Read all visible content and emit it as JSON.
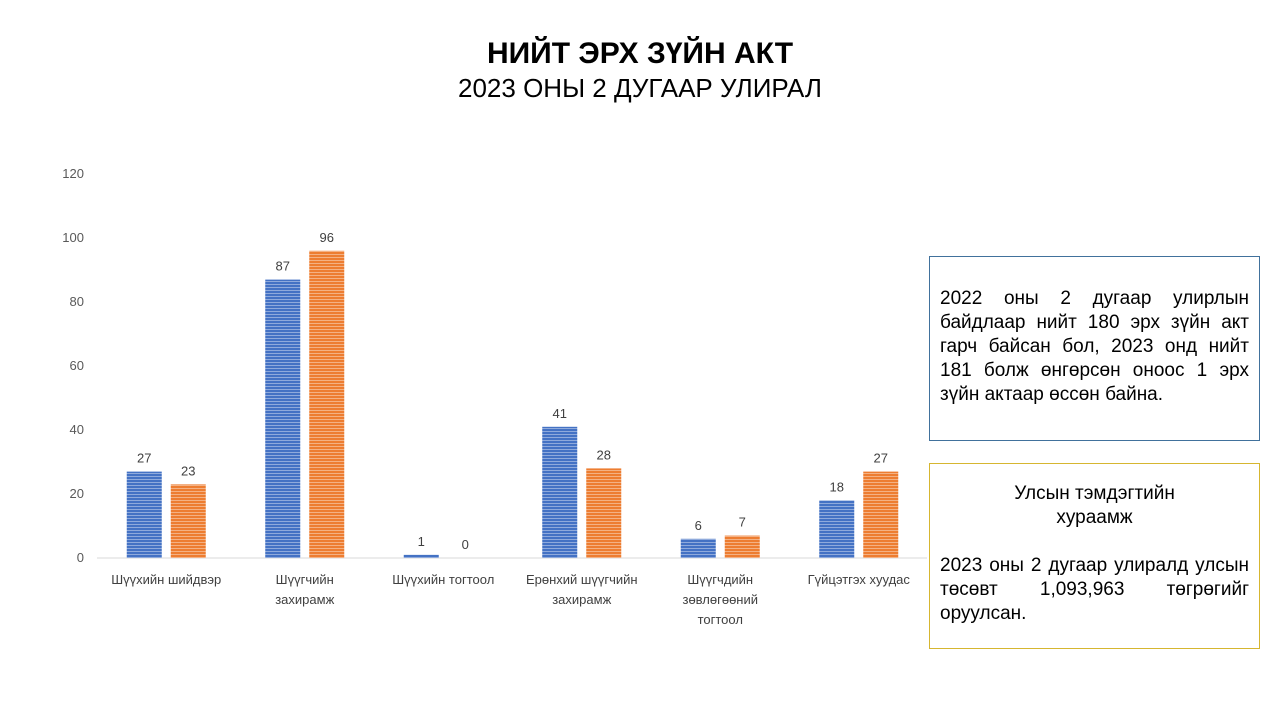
{
  "header": {
    "title": "НИЙТ ЭРХ ЗҮЙН АКТ",
    "subtitle": "2023 ОНЫ 2 ДУГААР УЛИРАЛ"
  },
  "chart_data": {
    "type": "bar",
    "categories": [
      [
        "Шүүхийн шийдвэр"
      ],
      [
        "Шүүгчийн",
        "захирамж"
      ],
      [
        "Шүүхийн тогтоол"
      ],
      [
        "Ерөнхий шүүгчийн",
        "захирамж"
      ],
      [
        "Шүүгчдийн",
        "зөвлөгөөний",
        "тогтоол"
      ],
      [
        "Гүйцэтгэх хуудас"
      ]
    ],
    "series": [
      {
        "color": "#4472c4",
        "values": [
          27,
          87,
          1,
          41,
          6,
          18
        ]
      },
      {
        "color": "#ed7d31",
        "values": [
          23,
          96,
          0,
          28,
          7,
          27
        ]
      }
    ],
    "ylim": [
      0,
      120
    ],
    "yticks": [
      0,
      20,
      40,
      60,
      80,
      100,
      120
    ],
    "grid": false,
    "legend": "none"
  },
  "info_box": {
    "text": "2022 оны 2 дугаар улирлын байдлаар нийт 180 эрх зүйн акт гарч байсан бол, 2023 онд нийт 181 болж өнгөрсөн оноос 1 эрх зүйн актаар өссөн байна."
  },
  "stamp_box": {
    "heading": "Улсын тэмдэгтийн хураамж",
    "text": "2023 оны 2 дугаар улиралд улсын төсөвт 1,093,963 төгрөгийг оруулсан."
  }
}
